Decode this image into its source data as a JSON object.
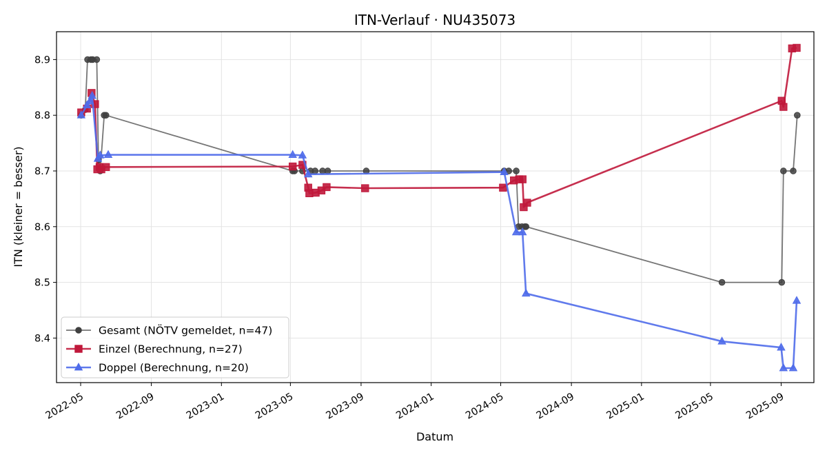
{
  "chart_data": {
    "type": "line",
    "title": "ITN-Verlauf · NU435073",
    "xlabel": "Datum",
    "ylabel": "ITN  (kleiner = besser)",
    "xlim": [
      "2022-03-20",
      "2025-10-28"
    ],
    "ylim": [
      8.32,
      8.95
    ],
    "grid": true,
    "legend_position": "lower-left",
    "x_ticks": [
      "2022-05",
      "2022-09",
      "2023-01",
      "2023-05",
      "2023-09",
      "2024-01",
      "2024-05",
      "2024-09",
      "2025-01",
      "2025-05",
      "2025-09"
    ],
    "y_ticks": [
      8.4,
      8.5,
      8.6,
      8.7,
      8.8,
      8.9
    ],
    "series": [
      {
        "name": "Gesamt (NÖTV gemeldet, n=47)",
        "color": "#404040",
        "marker": "circle",
        "points": [
          [
            "2022-05-02",
            8.8
          ],
          [
            "2022-05-09",
            8.81
          ],
          [
            "2022-05-13",
            8.9
          ],
          [
            "2022-05-19",
            8.9
          ],
          [
            "2022-05-22",
            8.9
          ],
          [
            "2022-05-29",
            8.9
          ],
          [
            "2022-06-01",
            8.72
          ],
          [
            "2022-06-04",
            8.7
          ],
          [
            "2022-06-11",
            8.8
          ],
          [
            "2022-06-14",
            8.8
          ],
          [
            "2023-05-05",
            8.7
          ],
          [
            "2023-05-08",
            8.7
          ],
          [
            "2023-05-22",
            8.7
          ],
          [
            "2023-06-05",
            8.7
          ],
          [
            "2023-06-13",
            8.7
          ],
          [
            "2023-06-26",
            8.7
          ],
          [
            "2023-07-05",
            8.7
          ],
          [
            "2023-09-10",
            8.7
          ],
          [
            "2024-05-07",
            8.7
          ],
          [
            "2024-05-15",
            8.7
          ],
          [
            "2024-05-28",
            8.7
          ],
          [
            "2024-06-01",
            8.6
          ],
          [
            "2024-06-07",
            8.6
          ],
          [
            "2024-06-12",
            8.6
          ],
          [
            "2024-06-14",
            8.6
          ],
          [
            "2025-05-21",
            8.5
          ],
          [
            "2025-09-02",
            8.5
          ],
          [
            "2025-09-05",
            8.7
          ],
          [
            "2025-09-22",
            8.7
          ],
          [
            "2025-09-29",
            8.8
          ]
        ]
      },
      {
        "name": "Einzel (Berechnung, n=27)",
        "color": "#c0183b",
        "marker": "square",
        "points": [
          [
            "2022-05-02",
            8.805
          ],
          [
            "2022-05-12",
            8.812
          ],
          [
            "2022-05-20",
            8.84
          ],
          [
            "2022-05-26",
            8.82
          ],
          [
            "2022-05-30",
            8.703
          ],
          [
            "2022-06-03",
            8.707
          ],
          [
            "2022-06-06",
            8.703
          ],
          [
            "2022-06-14",
            8.707
          ],
          [
            "2023-05-05",
            8.708
          ],
          [
            "2023-05-22",
            8.711
          ],
          [
            "2023-06-01",
            8.67
          ],
          [
            "2023-06-03",
            8.66
          ],
          [
            "2023-06-14",
            8.661
          ],
          [
            "2023-06-24",
            8.665
          ],
          [
            "2023-07-03",
            8.671
          ],
          [
            "2023-09-08",
            8.669
          ],
          [
            "2024-05-05",
            8.67
          ],
          [
            "2024-05-24",
            8.683
          ],
          [
            "2024-06-02",
            8.685
          ],
          [
            "2024-06-08",
            8.685
          ],
          [
            "2024-06-10",
            8.635
          ],
          [
            "2024-06-16",
            8.643
          ],
          [
            "2025-09-02",
            8.826
          ],
          [
            "2025-09-05",
            8.815
          ],
          [
            "2025-09-20",
            8.92
          ],
          [
            "2025-09-28",
            8.921
          ]
        ]
      },
      {
        "name": "Doppel (Berechnung, n=20)",
        "color": "#4f6cea",
        "marker": "triangle",
        "points": [
          [
            "2022-05-02",
            8.8
          ],
          [
            "2022-05-12",
            8.818
          ],
          [
            "2022-05-17",
            8.825
          ],
          [
            "2022-05-21",
            8.835
          ],
          [
            "2022-05-31",
            8.722
          ],
          [
            "2022-06-04",
            8.728
          ],
          [
            "2022-06-18",
            8.729
          ],
          [
            "2023-05-05",
            8.729
          ],
          [
            "2023-05-22",
            8.728
          ],
          [
            "2023-06-01",
            8.694
          ],
          [
            "2024-05-07",
            8.698
          ],
          [
            "2024-05-28",
            8.59
          ],
          [
            "2024-06-08",
            8.59
          ],
          [
            "2024-06-14",
            8.48
          ],
          [
            "2025-05-21",
            8.394
          ],
          [
            "2025-09-01",
            8.383
          ],
          [
            "2025-09-05",
            8.346
          ],
          [
            "2025-09-22",
            8.346
          ],
          [
            "2025-09-28",
            8.467
          ]
        ]
      }
    ]
  }
}
